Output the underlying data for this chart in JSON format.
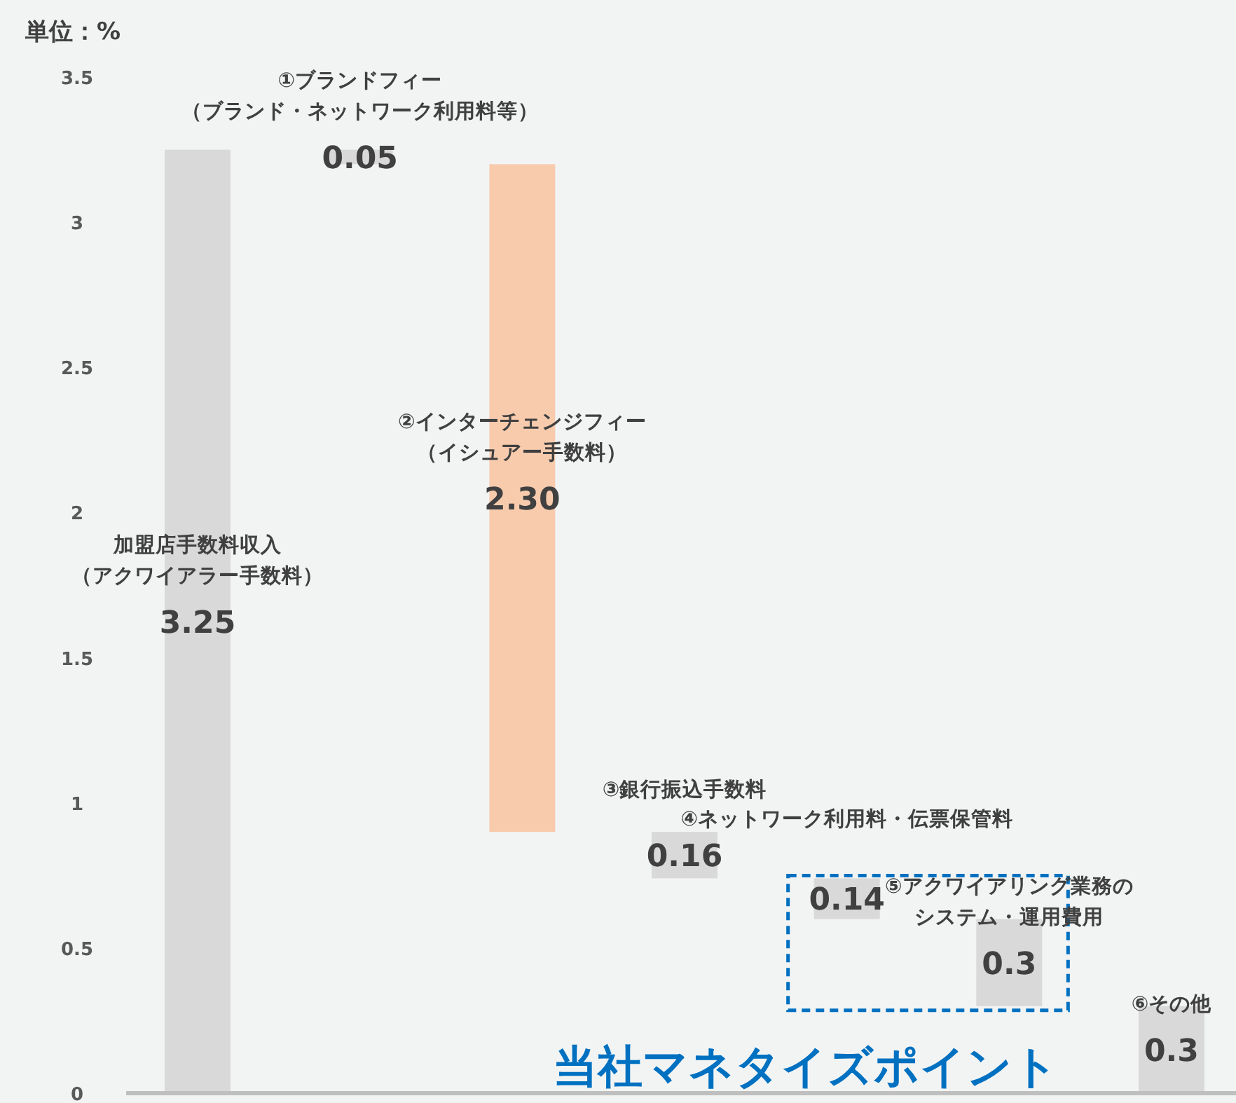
{
  "chart_data": {
    "type": "bar",
    "ylabel": "単位：%",
    "categories": [
      "加盟店手数料収入（アクワイアラー手数料）",
      "①ブランドフィー（ブランド・ネットワーク利用料等）",
      "②インターチェンジフィー（イシュアー手数料）",
      "③銀行振込手数料",
      "④ネットワーク利用料・伝票保管料",
      "⑤アクワイアリング業務のシステム・運用費用",
      "⑥その他"
    ],
    "values": [
      3.25,
      0.05,
      2.3,
      0.16,
      0.14,
      0.3,
      0.3
    ],
    "base": [
      0,
      3.2,
      0.9,
      0.74,
      0.6,
      0.3,
      0
    ],
    "colors": [
      "#d9d9d9",
      "#d9d9d9",
      "#f8cbad",
      "#d9d9d9",
      "#d9d9d9",
      "#d9d9d9",
      "#d9d9d9"
    ],
    "value_labels": [
      "3.25",
      "0.05",
      "2.30",
      "0.16",
      "0.14",
      "0.3",
      "0.3"
    ],
    "ylim": [
      0,
      3.5
    ],
    "yticks": [
      0,
      0.5,
      1,
      1.5,
      2,
      2.5,
      3,
      3.5
    ],
    "annotations": [
      "当社マネタイズポイント"
    ]
  }
}
